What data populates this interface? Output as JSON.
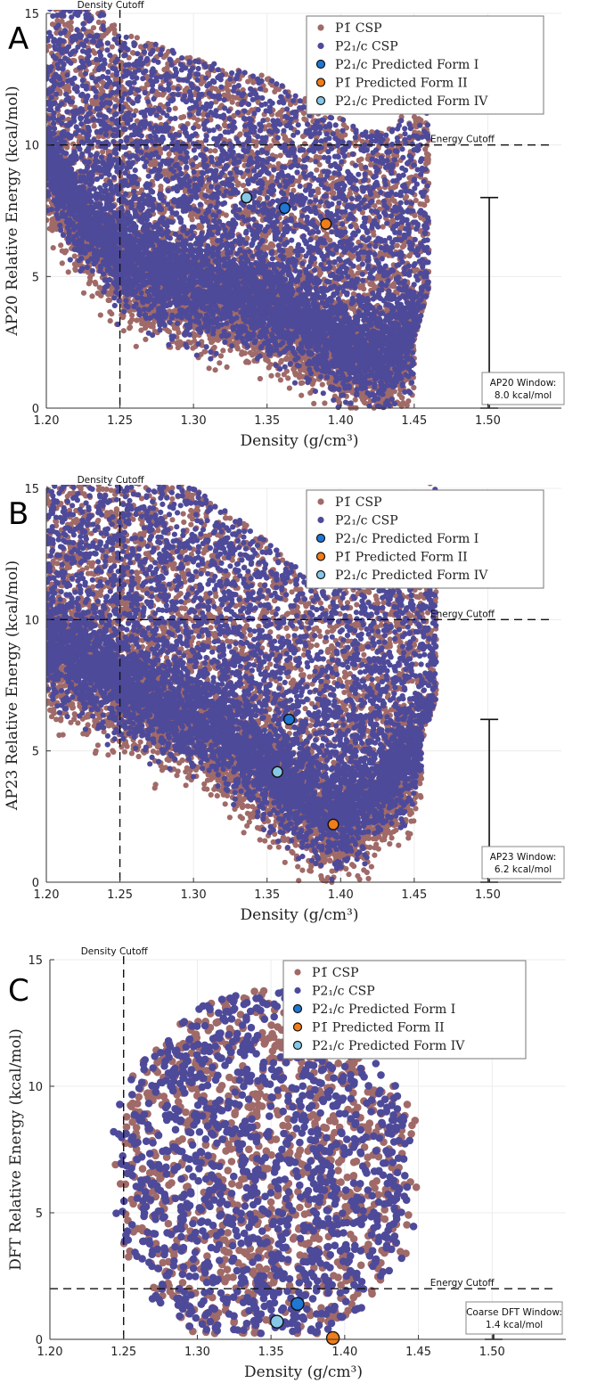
{
  "colors": {
    "p1_csp": "#a06a68",
    "p21c_csp": "#4e4a9a",
    "form1": "#1f77d4",
    "form2": "#f07d1a",
    "form4": "#86c8e6",
    "cutoff": "#111111"
  },
  "chart_data": [
    {
      "type": "scatter",
      "panel_label": "A",
      "xlabel": "Density (g/cm³)",
      "ylabel": "AP20 Relative Energy (kcal/mol)",
      "xlim": [
        1.2,
        1.55
      ],
      "ylim": [
        0,
        15
      ],
      "xticks": [
        "1.20",
        "1.25",
        "1.30",
        "1.35",
        "1.40",
        "1.45",
        "1.50"
      ],
      "yticks": [
        "0",
        "5",
        "10",
        "15"
      ],
      "density_cutoff": 1.25,
      "density_cutoff_label": "Density Cutoff",
      "energy_cutoff": 10,
      "energy_cutoff_label": "Energy Cutoff",
      "window_value": 8.0,
      "window_label": [
        "AP20 Window:",
        "8.0 kcal/mol"
      ],
      "legend": [
        "P1̄ CSP",
        "P2₁/c CSP",
        "P2₁/c Predicted Form I",
        "P1̄ Predicted Form II",
        "P2₁/c Predicted Form IV"
      ],
      "cloud_boundary": [
        [
          1.2,
          9.2
        ],
        [
          1.22,
          7.2
        ],
        [
          1.25,
          5.4
        ],
        [
          1.3,
          4.3
        ],
        [
          1.35,
          3.6
        ],
        [
          1.4,
          2.0
        ],
        [
          1.43,
          1.5
        ],
        [
          1.45,
          2.6
        ],
        [
          1.465,
          5.6
        ],
        [
          1.475,
          7.5
        ],
        [
          1.47,
          9.5
        ],
        [
          1.46,
          11.8
        ],
        [
          1.45,
          14.5
        ]
      ],
      "csp_series": [
        {
          "name": "P1̄ CSP",
          "count": 6800
        },
        {
          "name": "P2₁/c CSP",
          "count": 6800
        }
      ],
      "predicted": [
        {
          "name": "P2₁/c Predicted Form I",
          "x": 1.362,
          "y": 7.6
        },
        {
          "name": "P1̄ Predicted Form II",
          "x": 1.39,
          "y": 7.0
        },
        {
          "name": "P2₁/c Predicted Form IV",
          "x": 1.336,
          "y": 8.0
        }
      ]
    },
    {
      "type": "scatter",
      "panel_label": "B",
      "xlabel": "Density (g/cm³)",
      "ylabel": "AP23 Relative Energy (kcal/mol)",
      "xlim": [
        1.2,
        1.55
      ],
      "ylim": [
        0,
        15
      ],
      "xticks": [
        "1.20",
        "1.25",
        "1.30",
        "1.35",
        "1.40",
        "1.45",
        "1.50"
      ],
      "yticks": [
        "0",
        "5",
        "10",
        "15"
      ],
      "density_cutoff": 1.25,
      "density_cutoff_label": "Density Cutoff",
      "energy_cutoff": 10,
      "energy_cutoff_label": "Energy Cutoff",
      "window_value": 6.2,
      "window_label": [
        "AP23 Window:",
        "6.2 kcal/mol"
      ],
      "legend": [
        "P1̄ CSP",
        "P2₁/c CSP",
        "P2₁/c Predicted Form I",
        "P1̄ Predicted Form II",
        "P2₁/c Predicted Form IV"
      ],
      "cloud_boundary": [
        [
          1.2,
          8.8
        ],
        [
          1.23,
          7.8
        ],
        [
          1.26,
          7.0
        ],
        [
          1.3,
          6.0
        ],
        [
          1.34,
          4.5
        ],
        [
          1.37,
          3.0
        ],
        [
          1.39,
          2.0
        ],
        [
          1.42,
          2.8
        ],
        [
          1.45,
          4.5
        ],
        [
          1.465,
          7.0
        ],
        [
          1.47,
          9.5
        ],
        [
          1.465,
          12.5
        ],
        [
          1.455,
          15.0
        ]
      ],
      "csp_series": [
        {
          "name": "P1̄ CSP",
          "count": 6800
        },
        {
          "name": "P2₁/c CSP",
          "count": 6800
        }
      ],
      "predicted": [
        {
          "name": "P2₁/c Predicted Form I",
          "x": 1.365,
          "y": 6.2
        },
        {
          "name": "P1̄ Predicted Form II",
          "x": 1.395,
          "y": 2.2
        },
        {
          "name": "P2₁/c Predicted Form IV",
          "x": 1.357,
          "y": 4.2
        }
      ]
    },
    {
      "type": "scatter",
      "panel_label": "C",
      "xlabel": "Density (g/cm³)",
      "ylabel": "DFT Relative Energy (kcal/mol)",
      "xlim": [
        1.2,
        1.55
      ],
      "ylim": [
        0,
        15
      ],
      "xticks": [
        "1.20",
        "1.25",
        "1.30",
        "1.35",
        "1.40",
        "1.45",
        "1.50"
      ],
      "yticks": [
        "0",
        "5",
        "10",
        "15"
      ],
      "density_cutoff": 1.25,
      "density_cutoff_label": "Density Cutoff",
      "energy_cutoff": 2,
      "energy_cutoff_label": "Energy Cutoff",
      "window_value": 1.4,
      "window_label": [
        "Coarse DFT Window:",
        "1.4 kcal/mol"
      ],
      "legend": [
        "P1̄ CSP",
        "P2₁/c CSP",
        "P2₁/c Predicted Form I",
        "P1̄ Predicted Form II",
        "P2₁/c Predicted Form IV"
      ],
      "cloud_center": [
        1.345,
        6.8
      ],
      "cloud_radius": [
        0.1,
        6.8
      ],
      "csp_series": [
        {
          "name": "P1̄ CSP",
          "count": 1050
        },
        {
          "name": "P2₁/c CSP",
          "count": 1150
        }
      ],
      "predicted": [
        {
          "name": "P2₁/c Predicted Form I",
          "x": 1.368,
          "y": 1.4
        },
        {
          "name": "P1̄ Predicted Form II",
          "x": 1.392,
          "y": 0.05
        },
        {
          "name": "P2₁/c Predicted Form IV",
          "x": 1.354,
          "y": 0.7
        }
      ]
    }
  ]
}
